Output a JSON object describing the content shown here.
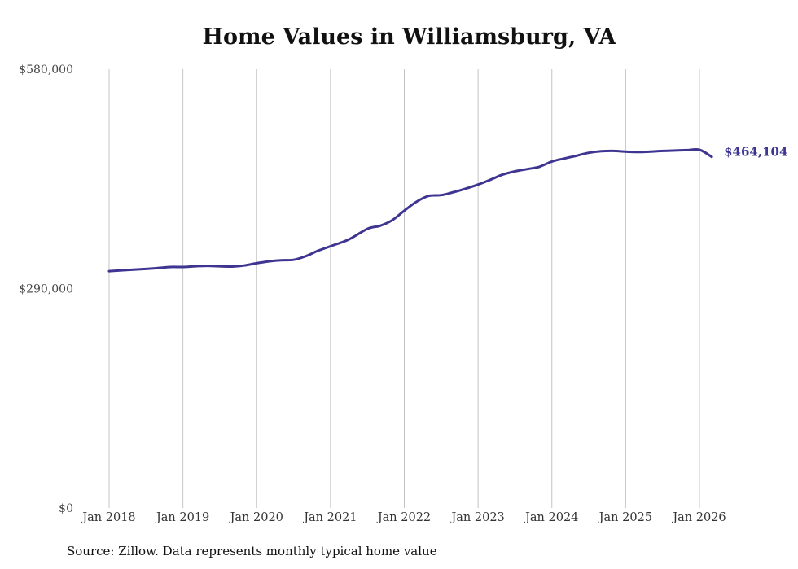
{
  "chart_data": {
    "type": "line",
    "title": "Home Values in Williamsburg, VA",
    "xlabel": "",
    "ylabel": "",
    "ylim": [
      0,
      580000
    ],
    "y_ticks": [
      {
        "value": 0,
        "label": "$0"
      },
      {
        "value": 290000,
        "label": "$290,000"
      },
      {
        "value": 580000,
        "label": "$580,000"
      }
    ],
    "x_ticks": [
      {
        "value": 2018,
        "label": "Jan 2018"
      },
      {
        "value": 2019,
        "label": "Jan 2019"
      },
      {
        "value": 2020,
        "label": "Jan 2020"
      },
      {
        "value": 2021,
        "label": "Jan 2021"
      },
      {
        "value": 2022,
        "label": "Jan 2022"
      },
      {
        "value": 2023,
        "label": "Jan 2023"
      },
      {
        "value": 2024,
        "label": "Jan 2024"
      },
      {
        "value": 2025,
        "label": "Jan 2025"
      },
      {
        "value": 2026,
        "label": "Jan 2026"
      }
    ],
    "xlim": [
      2018,
      2026.167
    ],
    "vertical_grid": true,
    "line_color": "#3d3591",
    "series": [
      {
        "name": "Typical home value",
        "x": [
          2018.0,
          2018.33,
          2018.58,
          2018.83,
          2019.0,
          2019.17,
          2019.33,
          2019.5,
          2019.67,
          2019.83,
          2020.0,
          2020.17,
          2020.33,
          2020.5,
          2020.67,
          2020.83,
          2021.0,
          2021.25,
          2021.5,
          2021.67,
          2021.83,
          2022.0,
          2022.17,
          2022.33,
          2022.5,
          2022.67,
          2022.83,
          2023.0,
          2023.17,
          2023.33,
          2023.5,
          2023.67,
          2023.83,
          2024.0,
          2024.17,
          2024.33,
          2024.5,
          2024.67,
          2024.83,
          2025.0,
          2025.17,
          2025.33,
          2025.5,
          2025.67,
          2025.83,
          2026.0,
          2026.167
        ],
        "values": [
          313000,
          315000,
          316500,
          318500,
          318500,
          319500,
          320000,
          319500,
          319000,
          320500,
          323500,
          326000,
          327500,
          328000,
          333000,
          340000,
          346000,
          355000,
          369000,
          373000,
          380000,
          393000,
          405000,
          412500,
          413500,
          417500,
          422000,
          427500,
          434000,
          440500,
          445000,
          448000,
          451000,
          458000,
          462000,
          465500,
          469500,
          471500,
          472000,
          471000,
          470500,
          471000,
          472000,
          472500,
          473000,
          473500,
          464104
        ]
      }
    ],
    "end_label": "$464,104"
  },
  "footer": {
    "source": "Source: Zillow. Data represents monthly typical home value"
  }
}
